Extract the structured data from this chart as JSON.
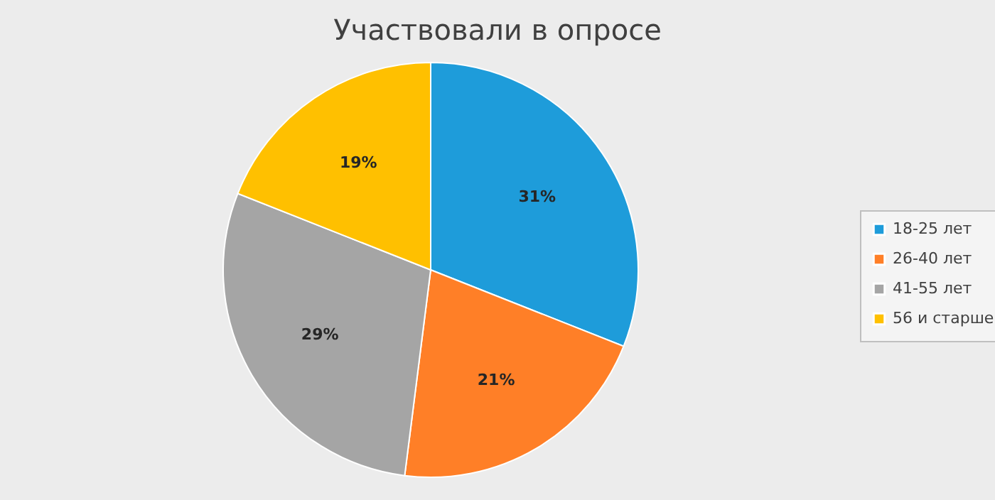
{
  "chart_data": {
    "type": "pie",
    "title": "Участвовали в опросе",
    "categories": [
      "18-25 лет",
      "26-40 лет",
      "41-55 лет",
      "56 и старше"
    ],
    "values": [
      31,
      21,
      29,
      19
    ],
    "value_labels": [
      "31%",
      "21%",
      "29%",
      "19%"
    ],
    "colors": [
      "#1e9cda",
      "#ff7f27",
      "#a5a5a5",
      "#ffc000"
    ],
    "legend": "right"
  }
}
